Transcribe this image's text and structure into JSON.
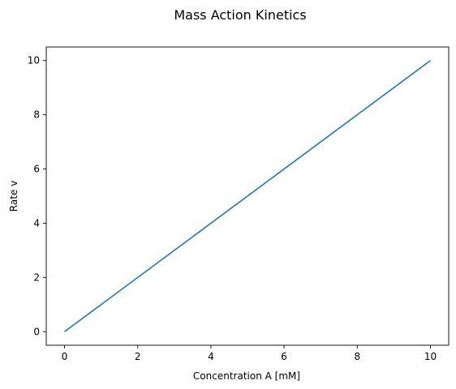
{
  "chart_data": {
    "type": "line",
    "title": "Mass Action Kinetics",
    "xlabel": "Concentration A [mM]",
    "ylabel": "Rate v",
    "xlim": [
      -0.5,
      10.5
    ],
    "ylim": [
      -0.5,
      10.5
    ],
    "xticks": [
      0,
      2,
      4,
      6,
      8,
      10
    ],
    "yticks": [
      0,
      2,
      4,
      6,
      8,
      10
    ],
    "grid": false,
    "series": [
      {
        "color": "#1f77b4",
        "x": [
          0,
          10
        ],
        "y": [
          0,
          10
        ]
      }
    ]
  }
}
